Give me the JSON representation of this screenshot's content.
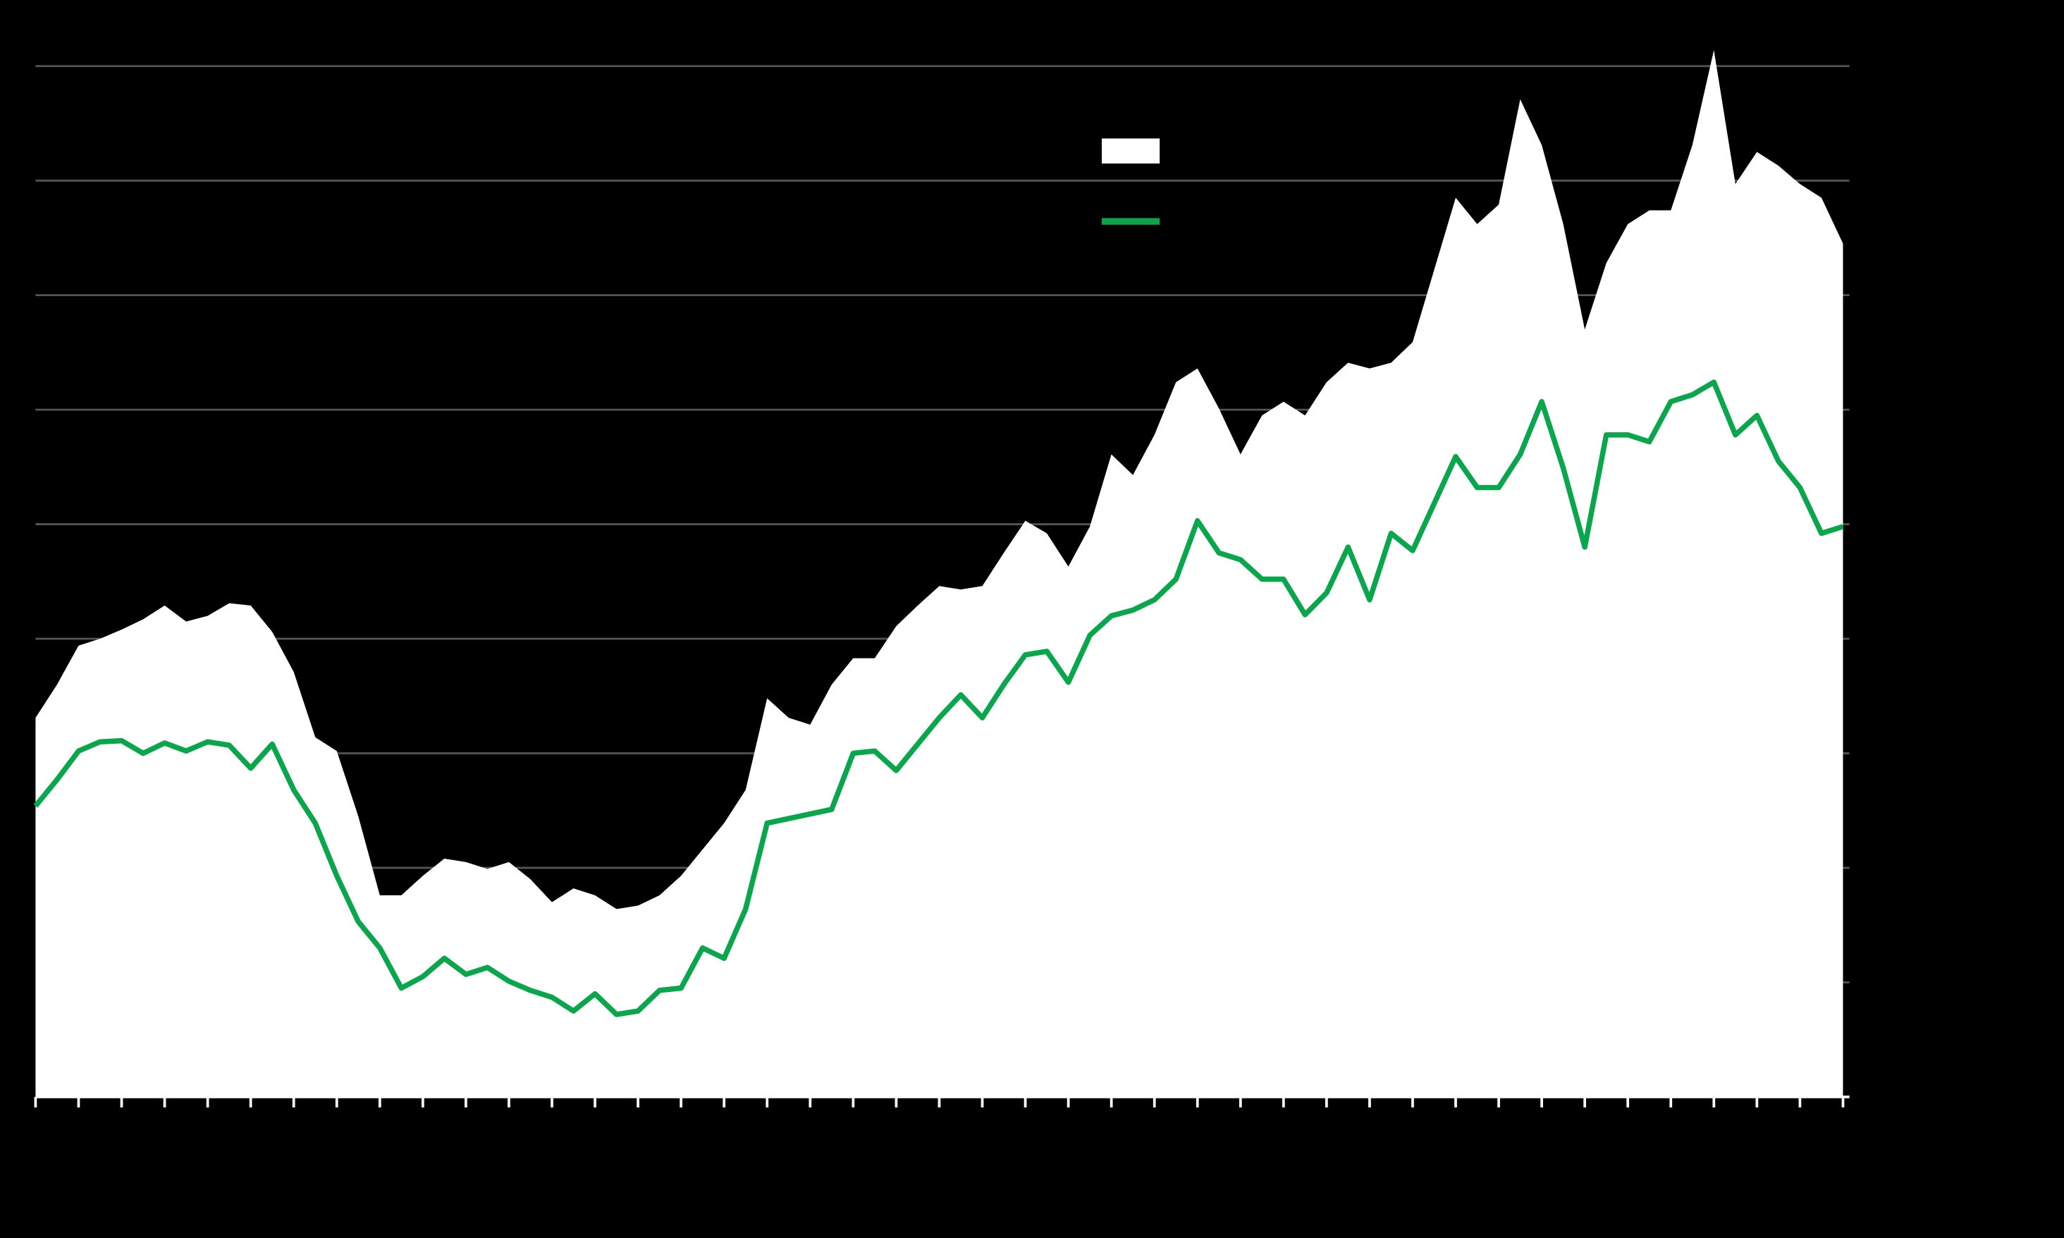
{
  "chart_data": {
    "type": "line",
    "x": [
      0,
      0.5,
      1,
      1.5,
      2,
      2.5,
      3,
      3.5,
      4,
      4.5,
      5,
      5.5,
      6,
      6.5,
      7,
      7.5,
      8,
      8.5,
      9,
      9.5,
      10,
      10.5,
      11,
      11.5,
      12,
      12.5,
      13,
      13.5,
      14,
      14.5,
      15,
      15.5,
      16,
      16.5,
      17,
      17.5,
      18,
      18.5,
      19,
      19.5,
      20,
      20.5,
      21,
      21.5,
      22,
      22.5,
      23,
      23.5,
      24,
      24.5,
      25,
      25.5,
      26,
      26.5,
      27,
      27.5,
      28,
      28.5,
      29,
      29.5,
      30,
      30.5,
      31,
      31.5,
      32,
      32.5,
      33,
      33.5,
      34,
      34.5,
      35,
      35.5,
      36,
      36.5,
      37,
      37.5,
      38,
      38.5,
      39,
      39.5,
      40,
      40.5,
      41,
      41.5,
      42
    ],
    "series": [
      {
        "type": "area",
        "color": "#ffffff",
        "values": [
          3.31,
          3.6,
          3.94,
          4.0,
          4.08,
          4.17,
          4.29,
          4.15,
          4.2,
          4.31,
          4.29,
          4.06,
          3.71,
          3.14,
          3.02,
          2.45,
          1.76,
          1.76,
          1.93,
          2.08,
          2.05,
          1.99,
          2.05,
          1.9,
          1.7,
          1.82,
          1.76,
          1.64,
          1.67,
          1.76,
          1.93,
          2.16,
          2.39,
          2.68,
          3.48,
          3.31,
          3.25,
          3.6,
          3.83,
          3.83,
          4.11,
          4.29,
          4.46,
          4.43,
          4.46,
          4.75,
          5.03,
          4.92,
          4.63,
          4.98,
          5.61,
          5.43,
          5.78,
          6.24,
          6.36,
          6.01,
          5.61,
          5.95,
          6.07,
          5.95,
          6.24,
          6.41,
          6.36,
          6.41,
          6.59,
          7.22,
          7.85,
          7.62,
          7.79,
          8.71,
          8.31,
          7.62,
          6.7,
          7.28,
          7.62,
          7.74,
          7.74,
          8.31,
          9.14,
          7.97,
          8.25,
          8.13,
          7.97,
          7.85,
          7.45
        ]
      },
      {
        "type": "line",
        "color": "#0aa64b",
        "values": [
          2.54,
          2.77,
          3.02,
          3.1,
          3.11,
          3.0,
          3.09,
          3.02,
          3.1,
          3.07,
          2.87,
          3.08,
          2.68,
          2.39,
          1.93,
          1.53,
          1.3,
          0.95,
          1.05,
          1.21,
          1.07,
          1.13,
          1.01,
          0.93,
          0.87,
          0.75,
          0.9,
          0.72,
          0.75,
          0.93,
          0.95,
          1.3,
          1.21,
          1.64,
          2.39,
          2.43,
          2.47,
          2.51,
          3.0,
          3.02,
          2.85,
          3.08,
          3.31,
          3.51,
          3.31,
          3.6,
          3.86,
          3.89,
          3.62,
          4.03,
          4.2,
          4.25,
          4.34,
          4.52,
          5.03,
          4.75,
          4.69,
          4.52,
          4.52,
          4.21,
          4.4,
          4.8,
          4.34,
          4.92,
          4.77,
          5.18,
          5.59,
          5.32,
          5.32,
          5.61,
          6.07,
          5.49,
          4.8,
          5.78,
          5.78,
          5.72,
          6.07,
          6.13,
          6.24,
          5.78,
          5.95,
          5.55,
          5.32,
          4.92,
          4.98
        ]
      }
    ],
    "xlim": [
      0,
      42.15
    ],
    "xticks": [
      0,
      1,
      2,
      3,
      4,
      5,
      6,
      7,
      8,
      9,
      10,
      11,
      12,
      13,
      14,
      15,
      16,
      17,
      18,
      19,
      20,
      21,
      22,
      23,
      24,
      25,
      26,
      27,
      28,
      29,
      30,
      31,
      32,
      33,
      34,
      35,
      36,
      37,
      38,
      39,
      40,
      41,
      42
    ],
    "ylim": [
      0,
      9
    ],
    "yticks": [
      1,
      2,
      3,
      4,
      5,
      6,
      7,
      8,
      9
    ],
    "grid": true,
    "legend": "top-center"
  }
}
